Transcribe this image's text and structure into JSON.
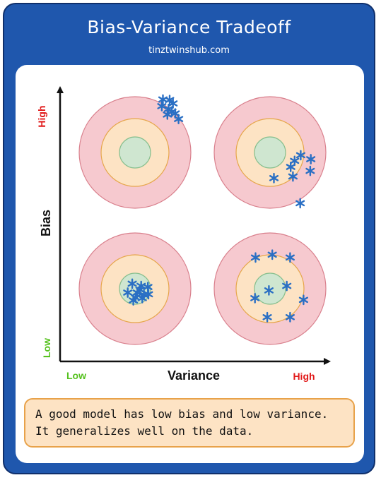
{
  "header": {
    "title": "Bias-Variance Tradeoff",
    "subtitle": "tinztwinshub.com"
  },
  "axes": {
    "y_label": "Bias",
    "y_high": "High",
    "y_low": "Low",
    "x_label": "Variance",
    "x_low": "Low",
    "x_high": "High"
  },
  "colors": {
    "frame": "#1f57ad",
    "ring_outer": "#f6c9cf",
    "ring_outer_stroke": "#d9808d",
    "ring_middle": "#fde3c4",
    "ring_middle_stroke": "#e6a64a",
    "bullseye": "#cfe6d0",
    "bullseye_stroke": "#88bf8e",
    "marker": "#2a6fc4",
    "high_label": "#e11919",
    "low_label": "#56c21f",
    "note_bg": "#fde3c4",
    "note_border": "#e8a24a"
  },
  "note": {
    "line1": "A good model has low bias and low variance.",
    "line2": "It generalizes well on the data."
  },
  "targets": [
    {
      "name": "target-high-bias-low-variance",
      "bias": "high",
      "variance": "low",
      "marks": [
        [
          0.5,
          -0.95
        ],
        [
          0.62,
          -0.94
        ],
        [
          0.48,
          -0.83
        ],
        [
          0.6,
          -0.78
        ],
        [
          0.68,
          -0.88
        ],
        [
          0.72,
          -0.7
        ],
        [
          0.78,
          -0.6
        ],
        [
          0.58,
          -0.68
        ],
        [
          0.66,
          -0.73
        ]
      ]
    },
    {
      "name": "target-high-bias-high-variance",
      "bias": "high",
      "variance": "high",
      "marks": [
        [
          0.37,
          0.26
        ],
        [
          0.44,
          0.15
        ],
        [
          0.55,
          0.05
        ],
        [
          0.73,
          0.12
        ],
        [
          0.72,
          0.33
        ],
        [
          0.41,
          0.43
        ],
        [
          0.07,
          0.46
        ],
        [
          0.54,
          0.91
        ]
      ]
    },
    {
      "name": "target-low-bias-low-variance",
      "bias": "low",
      "variance": "low",
      "marks": [
        [
          -0.05,
          -0.09
        ],
        [
          0.11,
          -0.05
        ],
        [
          0.23,
          -0.03
        ],
        [
          -0.13,
          0.07
        ],
        [
          0.04,
          0.07
        ],
        [
          0.16,
          0.11
        ],
        [
          0.24,
          0.1
        ],
        [
          0.01,
          0.16
        ],
        [
          -0.03,
          0.21
        ],
        [
          0.13,
          0.17
        ],
        [
          0.09,
          0.02
        ]
      ]
    },
    {
      "name": "target-low-bias-high-variance",
      "bias": "low",
      "variance": "high",
      "marks": [
        [
          -0.26,
          -0.56
        ],
        [
          0.04,
          -0.61
        ],
        [
          0.36,
          -0.56
        ],
        [
          -0.02,
          0.03
        ],
        [
          0.3,
          -0.05
        ],
        [
          -0.27,
          0.17
        ],
        [
          0.6,
          0.2
        ],
        [
          -0.05,
          0.51
        ],
        [
          0.36,
          0.51
        ]
      ]
    }
  ]
}
